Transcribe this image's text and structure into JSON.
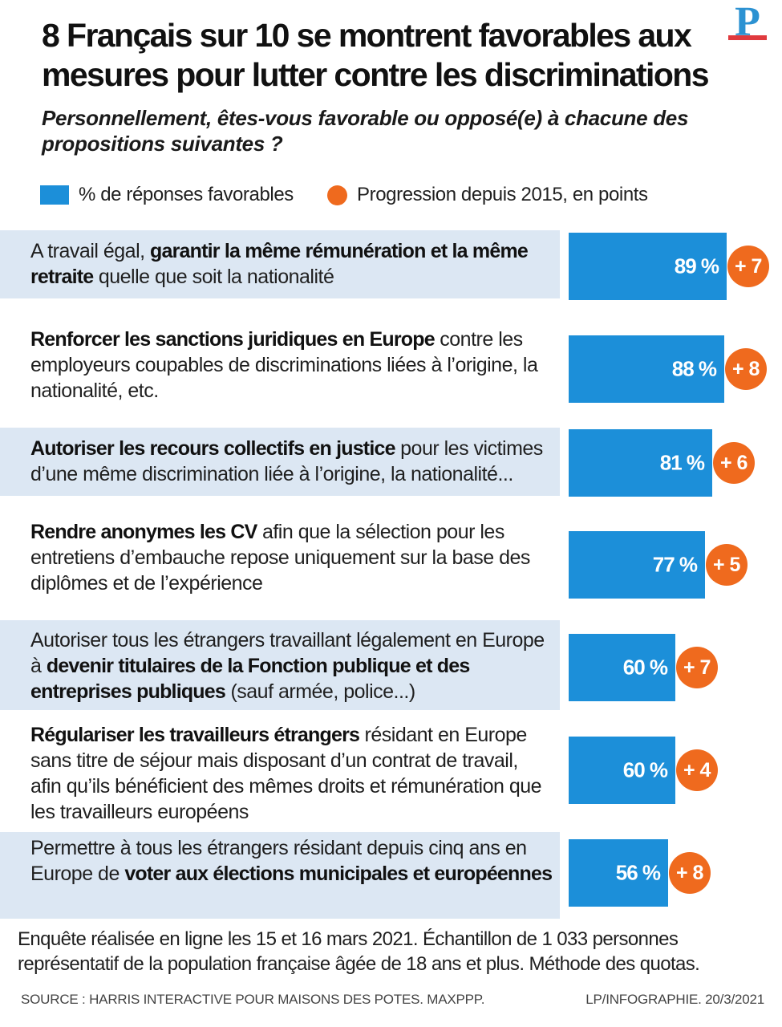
{
  "title": "8 Français sur 10 se montrent favorables aux mesures pour lutter contre les discriminations",
  "logo": {
    "letter": "P",
    "brand_blue": "#2c92d2",
    "brand_red": "#e03a3e"
  },
  "subtitle": "Personnellement, êtes-vous favorable ou opposé(e) à chacune des propositions suivantes ?",
  "legend": {
    "favorable_label": "% de réponses favorables",
    "progression_label": "Progression depuis 2015, en points"
  },
  "colors": {
    "bar": "#1c8fd9",
    "progression": "#ef6a1e",
    "band": "#dce7f3"
  },
  "chart_data": {
    "type": "bar",
    "orientation": "horizontal",
    "unit": "%",
    "xlim": [
      0,
      100
    ],
    "series": [
      {
        "name": "% de réponses favorables",
        "values": [
          89,
          88,
          81,
          77,
          60,
          60,
          56
        ],
        "labels": [
          "89 %",
          "88 %",
          "81 %",
          "77 %",
          "60 %",
          "60 %",
          "56 %"
        ]
      },
      {
        "name": "Progression depuis 2015, en points",
        "values": [
          7,
          8,
          6,
          5,
          7,
          4,
          8
        ],
        "labels": [
          "+ 7",
          "+ 8",
          "+ 6",
          "+ 5",
          "+ 7",
          "+ 4",
          "+ 8"
        ]
      }
    ],
    "categories": [
      {
        "banded": true,
        "parts": [
          {
            "t": "A travail égal, ",
            "b": false
          },
          {
            "t": "garantir la même rémunération et la même retraite",
            "b": true
          },
          {
            "t": " quelle que soit la nationalité",
            "b": false
          }
        ]
      },
      {
        "banded": false,
        "parts": [
          {
            "t": "Renforcer les sanctions juridiques en Europe",
            "b": true
          },
          {
            "t": " contre les employeurs coupables de discriminations liées à l’origine, la nationalité, etc.",
            "b": false
          }
        ]
      },
      {
        "banded": true,
        "parts": [
          {
            "t": "Autoriser les recours collectifs en justice",
            "b": true
          },
          {
            "t": " pour les victimes d’une même discrimination liée à l’origine, la nationalité...",
            "b": false
          }
        ]
      },
      {
        "banded": false,
        "parts": [
          {
            "t": "Rendre anonymes les CV",
            "b": true
          },
          {
            "t": " afin que la sélection pour les entretiens d’embauche repose uniquement sur la base des diplômes et de l’expérience",
            "b": false
          }
        ]
      },
      {
        "banded": true,
        "parts": [
          {
            "t": "Autoriser tous les étrangers travaillant légalement en Europe à ",
            "b": false
          },
          {
            "t": "devenir titulaires de la Fonction publique et des entreprises publiques",
            "b": true
          },
          {
            "t": " (sauf armée, police...)",
            "b": false
          }
        ]
      },
      {
        "banded": false,
        "parts": [
          {
            "t": "Régulariser les travailleurs étrangers",
            "b": true
          },
          {
            "t": " résidant en Europe sans titre de séjour mais disposant d’un contrat de travail, afin qu’ils bénéficient des mêmes droits et  rémunération que les travailleurs européens",
            "b": false
          }
        ]
      },
      {
        "banded": true,
        "parts": [
          {
            "t": "Permettre à tous les étrangers résidant depuis cinq ans en Europe de ",
            "b": false
          },
          {
            "t": "voter aux élections municipales et européennes",
            "b": true
          }
        ]
      }
    ]
  },
  "note": "Enquête réalisée en ligne les 15 et 16 mars 2021. Échantillon de 1 033 personnes représentatif de la population française âgée de 18 ans et plus. Méthode des quotas.",
  "source": "SOURCE : HARRIS INTERACTIVE POUR MAISONS  DES POTES. MAXPPP.",
  "credit": "LP/INFOGRAPHIE. 20/3/2021"
}
